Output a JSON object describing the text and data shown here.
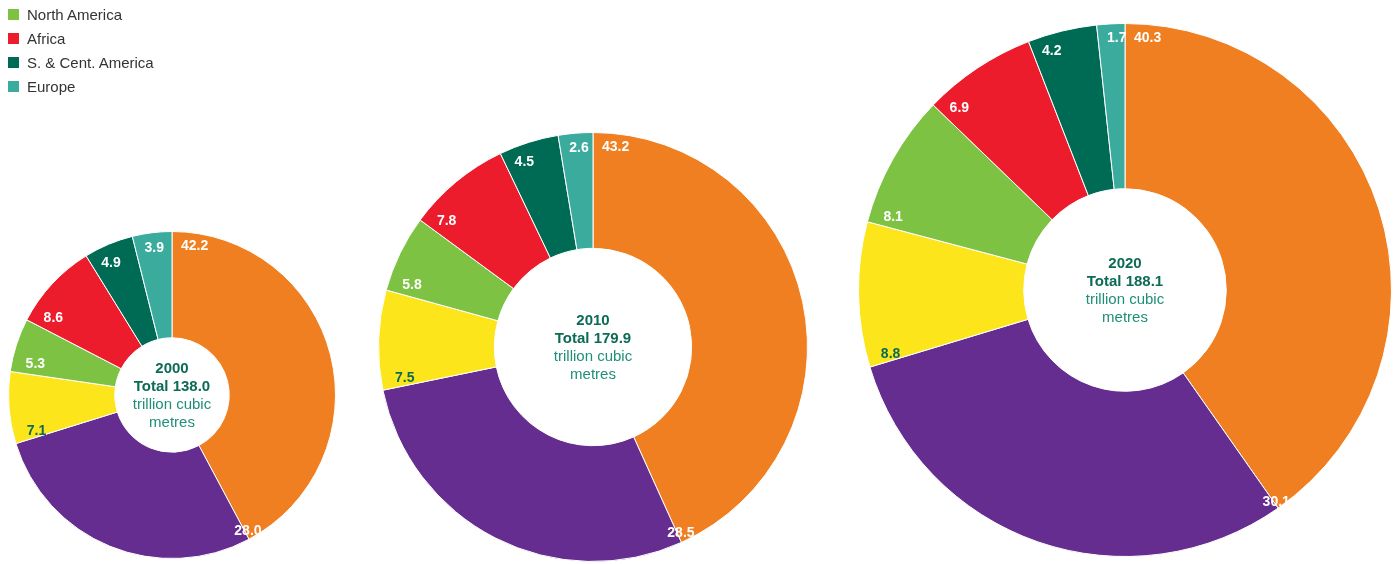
{
  "chart_data": [
    {
      "type": "donut",
      "title": "2000",
      "subtitle": "Total 138.0",
      "annotations": [
        "trillion cubic metres"
      ],
      "categories": [
        null,
        null,
        null,
        "North America",
        "Africa",
        "S. & Cent. America",
        "Europe"
      ],
      "values": [
        42.2,
        28.0,
        7.1,
        5.3,
        8.6,
        4.9,
        3.9
      ],
      "value_labels": [
        "42.2",
        "28.0",
        "7.1",
        "5.3",
        "8.6",
        "4.9",
        "3.9"
      ],
      "colors": [
        "#f07f22",
        "#662d91",
        "#fce51b",
        "#7dc243",
        "#ec1c2d",
        "#006b54",
        "#3aab9c"
      ],
      "legend": "top left"
    },
    {
      "type": "donut",
      "title": "2010",
      "subtitle": "Total 179.9",
      "annotations": [
        "trillion cubic metres"
      ],
      "categories": [
        null,
        null,
        null,
        null,
        null,
        null,
        null
      ],
      "values": [
        43.2,
        28.5,
        7.5,
        5.8,
        7.8,
        4.5,
        2.6
      ],
      "value_labels": [
        "43.2",
        "28.5",
        "7.5",
        "5.8",
        "7.8",
        "4.5",
        "2.6"
      ],
      "colors": [
        "#f07f22",
        "#662d91",
        "#fce51b",
        "#7dc243",
        "#ec1c2d",
        "#006b54",
        "#3aab9c"
      ]
    },
    {
      "type": "donut",
      "title": "2020",
      "subtitle": "Total 188.1",
      "annotations": [
        "trillion cubic metres"
      ],
      "categories": [
        null,
        null,
        null,
        null,
        null,
        null,
        null
      ],
      "values": [
        40.3,
        30.1,
        8.8,
        8.1,
        6.9,
        4.2,
        1.7
      ],
      "value_labels": [
        "40.3",
        "30.1",
        "8.8",
        "8.1",
        "6.9",
        "4.2",
        "1.7"
      ],
      "colors": [
        "#f07f22",
        "#662d91",
        "#fce51b",
        "#7dc243",
        "#ec1c2d",
        "#006b54",
        "#3aab9c"
      ]
    }
  ]
}
